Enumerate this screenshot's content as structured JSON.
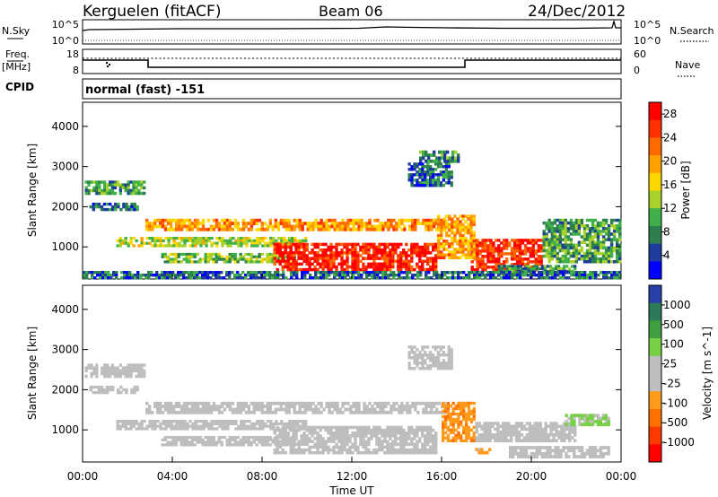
{
  "header": {
    "station": "Kerguelen (fitACF)",
    "beam": "Beam 06",
    "date": "24/Dec/2012"
  },
  "status": {
    "nsky_label": "N.Sky",
    "nsearch_label": "N.Search",
    "freq_label": "Freq.",
    "freq_unit": "[MHz]",
    "nave_label": "Nave",
    "cpid_label": "CPID",
    "cpid_value": "normal (fast) -151",
    "noise_ticks": [
      "10^5",
      "10^0"
    ],
    "noise_ticks_right": [
      "10^5",
      "10^0"
    ],
    "freq_ticks": [
      "18",
      "8"
    ],
    "nave_ticks": [
      "60",
      "0"
    ]
  },
  "time_axis": {
    "ticks": [
      "00:00",
      "04:00",
      "08:00",
      "12:00",
      "16:00",
      "20:00",
      "00:00"
    ],
    "label": "Time UT"
  },
  "colors": {
    "power_scale": [
      "#0000ff",
      "#1e3c9c",
      "#2e7f4e",
      "#3fb04a",
      "#a8d22a",
      "#ffd700",
      "#ffa000",
      "#ff6a00",
      "#ff3000",
      "#ff0000"
    ],
    "velocity_scale": [
      "#2740a8",
      "#2d7a5a",
      "#3f9f3f",
      "#77d045",
      "#bebebe",
      "#bebebe",
      "#ff9a1a",
      "#ff7000",
      "#ff3a00",
      "#ff0000"
    ],
    "ground_scatter": "#bebebe"
  },
  "chart_data": [
    {
      "type": "heatmap",
      "title": "",
      "xlabel": "",
      "ylabel": "Slant Range [km]",
      "xlim": [
        0,
        24
      ],
      "ylim": [
        200,
        4600
      ],
      "yticks": [
        "1000",
        "2000",
        "3000",
        "4000"
      ],
      "colorbar": {
        "label": "Power [dB]",
        "ticks": [
          "4",
          "8",
          "12",
          "16",
          "20",
          "24",
          "28"
        ],
        "range": [
          0,
          30
        ]
      },
      "regions": [
        {
          "t0": 0.1,
          "t1": 2.8,
          "r0": 2300,
          "r1": 2650,
          "value": 10
        },
        {
          "t0": 0.3,
          "t1": 2.5,
          "r0": 1900,
          "r1": 2100,
          "value": 6
        },
        {
          "t0": 2.8,
          "t1": 16.2,
          "r0": 1400,
          "r1": 1700,
          "value": 20
        },
        {
          "t0": 1.5,
          "t1": 10.0,
          "r0": 1000,
          "r1": 1250,
          "value": 14
        },
        {
          "t0": 3.5,
          "t1": 9.5,
          "r0": 600,
          "r1": 850,
          "value": 12
        },
        {
          "t0": 8.5,
          "t1": 15.8,
          "r0": 400,
          "r1": 1100,
          "value": 27
        },
        {
          "t0": 14.5,
          "t1": 16.5,
          "r0": 2500,
          "r1": 3100,
          "value": 6
        },
        {
          "t0": 15.0,
          "t1": 16.8,
          "r0": 3100,
          "r1": 3400,
          "value": 8
        },
        {
          "t0": 17.3,
          "t1": 20.5,
          "r0": 400,
          "r1": 1200,
          "value": 26
        },
        {
          "t0": 15.8,
          "t1": 17.5,
          "r0": 700,
          "r1": 1800,
          "value": 20
        },
        {
          "t0": 20.5,
          "t1": 24.0,
          "r0": 600,
          "r1": 1700,
          "value": 10
        },
        {
          "t0": 18.5,
          "t1": 22.0,
          "r0": 300,
          "r1": 550,
          "value": 8
        },
        {
          "t0": 0.0,
          "t1": 24.0,
          "r0": 200,
          "r1": 400,
          "value": 6
        }
      ]
    },
    {
      "type": "heatmap",
      "title": "",
      "xlabel": "Time UT",
      "ylabel": "Slant Range [km]",
      "xlim": [
        0,
        24
      ],
      "ylim": [
        200,
        4600
      ],
      "yticks": [
        "1000",
        "2000",
        "3000",
        "4000"
      ],
      "colorbar": {
        "label": "Velocity [m s^-1]",
        "ticks": [
          "1000",
          "500",
          "100",
          "25",
          "-25",
          "-100",
          "-500",
          "-1000"
        ],
        "range": [
          -1200,
          1200
        ]
      },
      "regions": [
        {
          "t0": 0.1,
          "t1": 2.8,
          "r0": 2300,
          "r1": 2650,
          "value": 0
        },
        {
          "t0": 0.3,
          "t1": 2.5,
          "r0": 1900,
          "r1": 2100,
          "value": 0
        },
        {
          "t0": 2.8,
          "t1": 16.2,
          "r0": 1400,
          "r1": 1700,
          "value": 0
        },
        {
          "t0": 1.5,
          "t1": 10.0,
          "r0": 1000,
          "r1": 1250,
          "value": 0
        },
        {
          "t0": 3.5,
          "t1": 9.5,
          "r0": 600,
          "r1": 850,
          "value": 0
        },
        {
          "t0": 8.5,
          "t1": 15.8,
          "r0": 400,
          "r1": 1100,
          "value": 0
        },
        {
          "t0": 14.5,
          "t1": 16.5,
          "r0": 2500,
          "r1": 3100,
          "value": 0
        },
        {
          "t0": 16.0,
          "t1": 17.5,
          "r0": 700,
          "r1": 1700,
          "value": -400
        },
        {
          "t0": 17.5,
          "t1": 22.0,
          "r0": 700,
          "r1": 1200,
          "value": 0
        },
        {
          "t0": 21.5,
          "t1": 23.5,
          "r0": 1100,
          "r1": 1400,
          "value": 300
        },
        {
          "t0": 17.5,
          "t1": 18.2,
          "r0": 400,
          "r1": 550,
          "value": -300
        },
        {
          "t0": 19.0,
          "t1": 23.5,
          "r0": 300,
          "r1": 600,
          "value": 80
        }
      ]
    }
  ]
}
